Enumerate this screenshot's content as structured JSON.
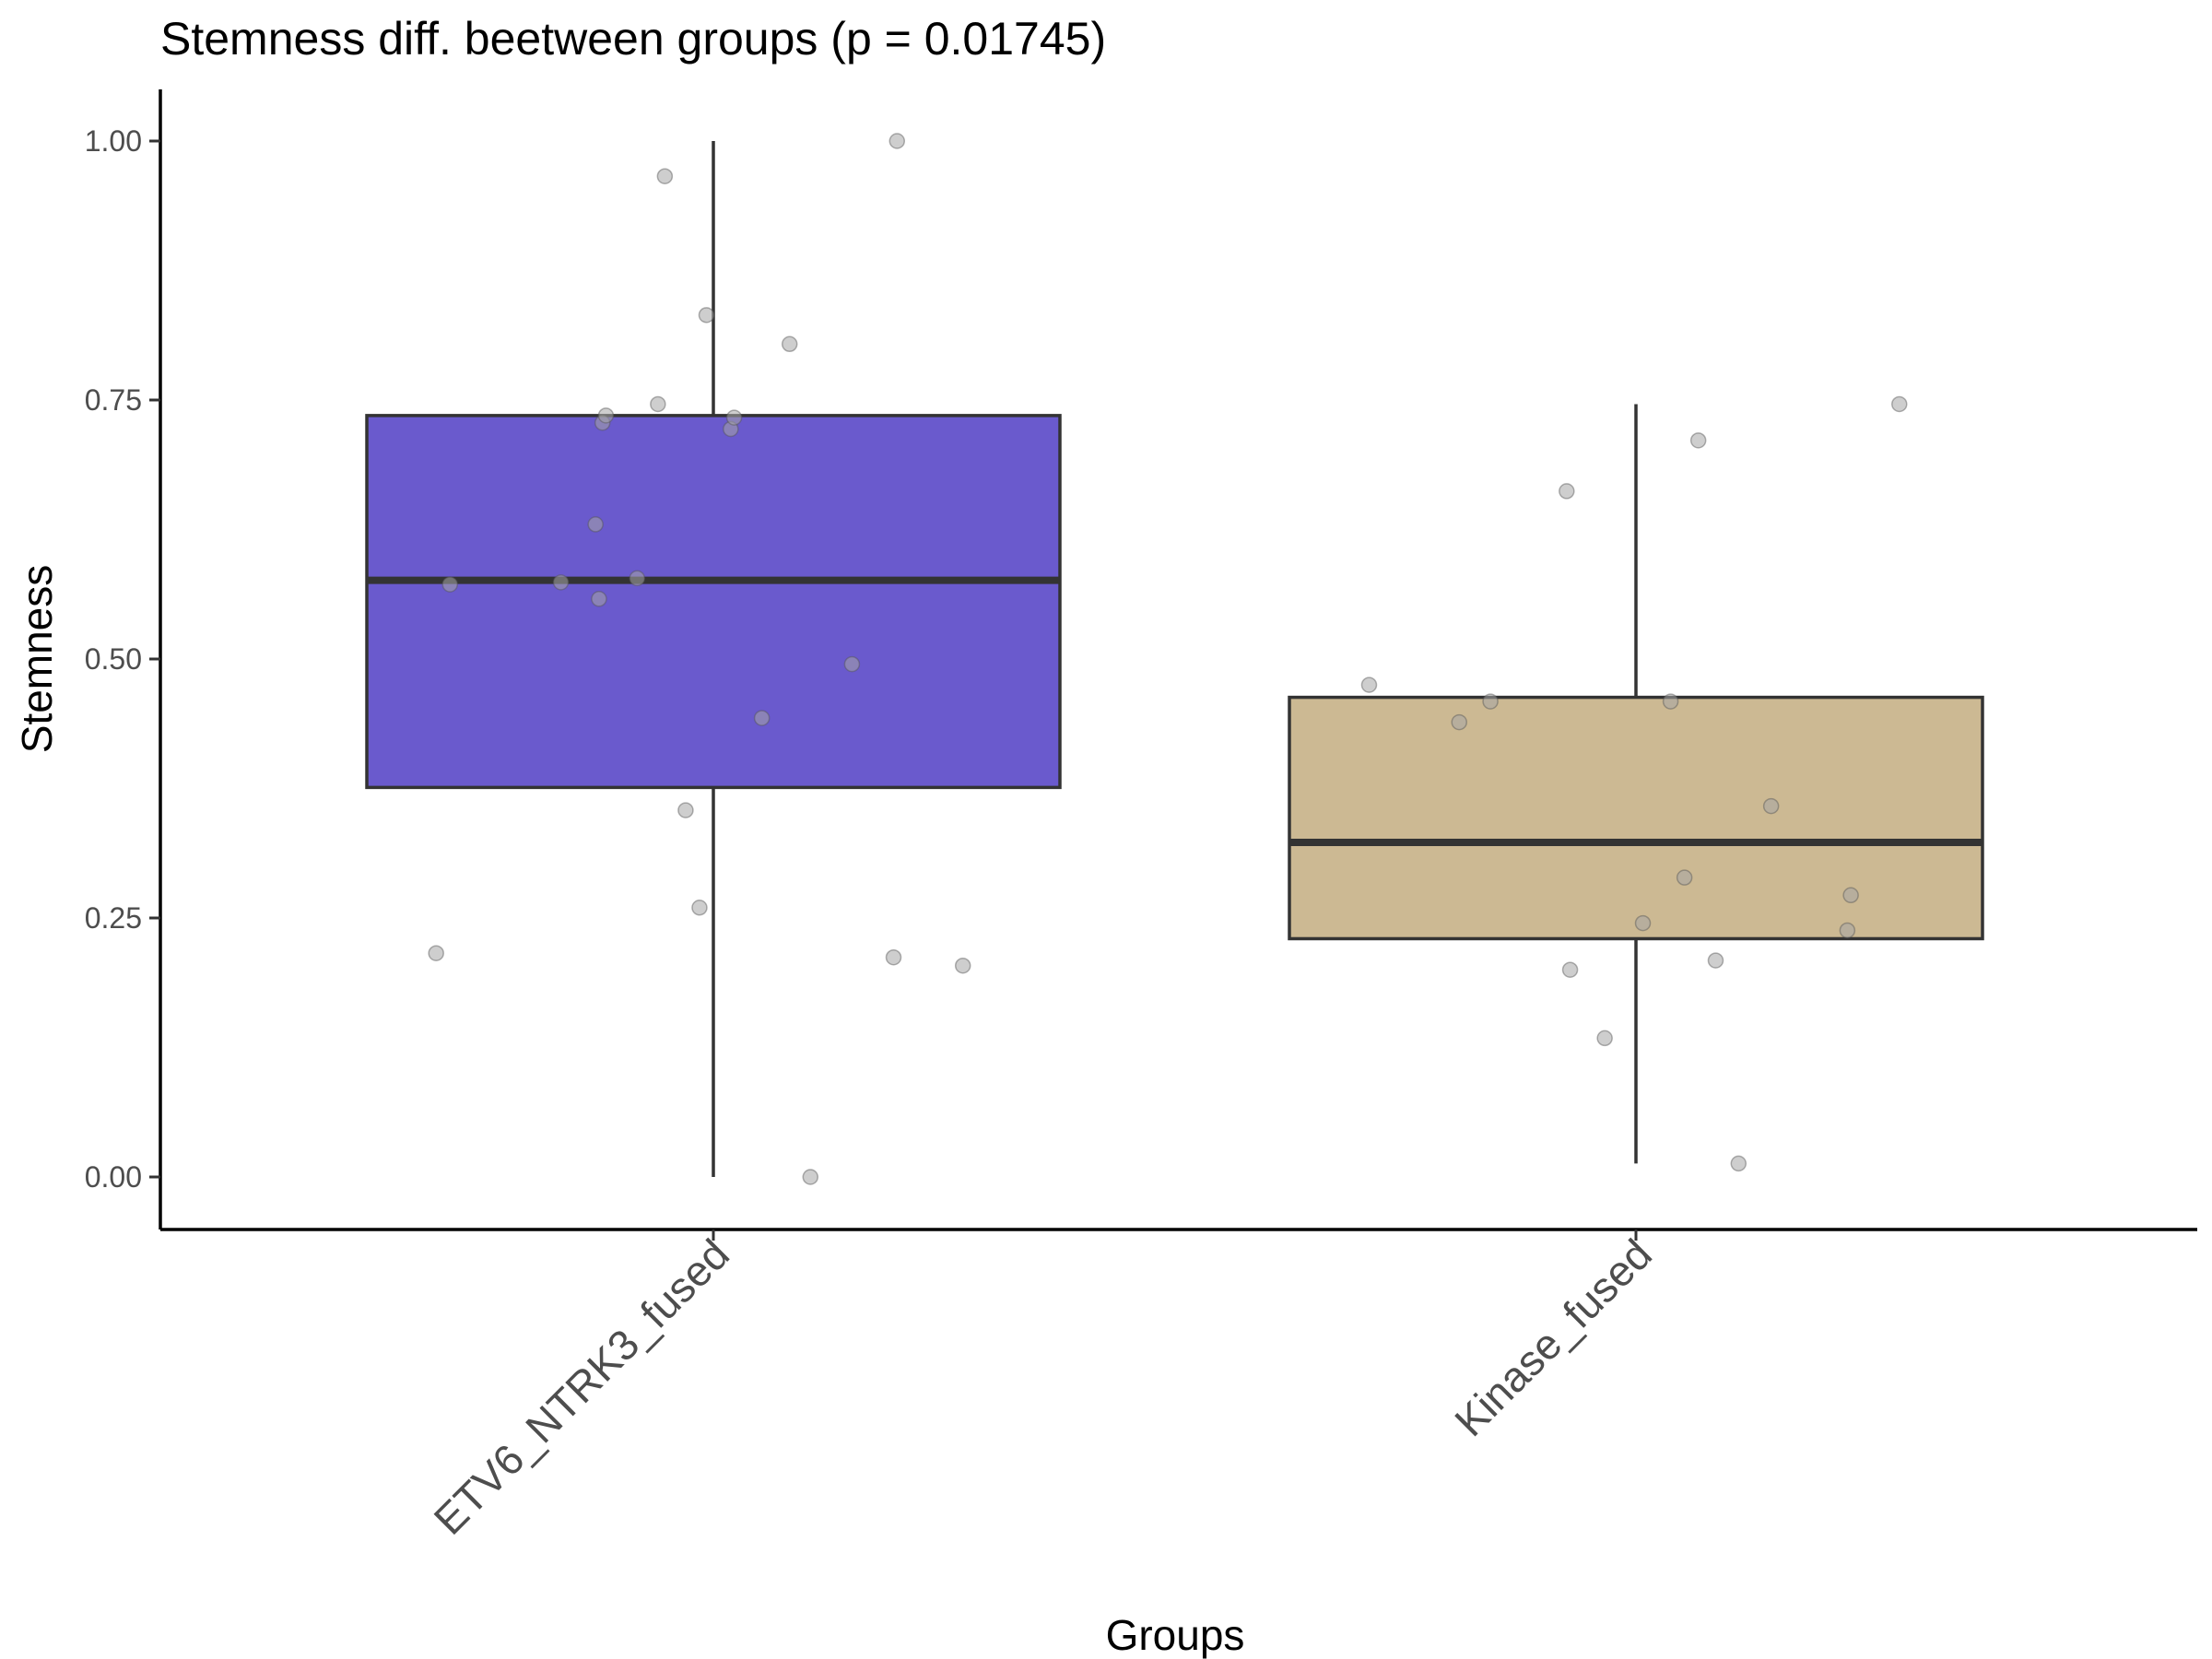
{
  "chart_data": {
    "type": "box",
    "title": "Stemness diff. beetween groups (p = 0.01745)",
    "xlabel": "Groups",
    "ylabel": "Stemness",
    "ylim": [
      -0.05,
      1.05
    ],
    "yticks": [
      0,
      0.25,
      0.5,
      0.75,
      1
    ],
    "ytick_labels": [
      "0.00",
      "0.25",
      "0.50",
      "0.75",
      "1.00"
    ],
    "grid": false,
    "legend": "none",
    "categories": [
      "ETV6_NTRK3_fused",
      "Kinase_fused"
    ],
    "point_color": "#a6a6a6",
    "box_outline_color": "#333333",
    "boxes": [
      {
        "group": "ETV6_NTRK3_fused",
        "fill": "#6a5acd",
        "whisker_low": 0.0,
        "q1": 0.376,
        "median": 0.576,
        "q3": 0.735,
        "whisker_high": 1.0,
        "points": [
          {
            "jitter": -0.38,
            "y": 0.572
          },
          {
            "jitter": -0.4,
            "y": 0.216
          },
          {
            "jitter": -0.22,
            "y": 0.574
          },
          {
            "jitter": -0.17,
            "y": 0.63
          },
          {
            "jitter": -0.165,
            "y": 0.558
          },
          {
            "jitter": -0.16,
            "y": 0.728
          },
          {
            "jitter": -0.155,
            "y": 0.735
          },
          {
            "jitter": -0.11,
            "y": 0.578
          },
          {
            "jitter": -0.08,
            "y": 0.746
          },
          {
            "jitter": -0.07,
            "y": 0.966
          },
          {
            "jitter": -0.04,
            "y": 0.354
          },
          {
            "jitter": -0.02,
            "y": 0.26
          },
          {
            "jitter": -0.01,
            "y": 0.832
          },
          {
            "jitter": 0.025,
            "y": 0.722
          },
          {
            "jitter": 0.03,
            "y": 0.733
          },
          {
            "jitter": 0.07,
            "y": 0.443
          },
          {
            "jitter": 0.14,
            "y": 0.0
          },
          {
            "jitter": 0.11,
            "y": 0.804
          },
          {
            "jitter": 0.2,
            "y": 0.495
          },
          {
            "jitter": 0.26,
            "y": 0.212
          },
          {
            "jitter": 0.265,
            "y": 1.0
          },
          {
            "jitter": 0.36,
            "y": 0.204
          }
        ]
      },
      {
        "group": "Kinase_fused",
        "fill": "#ccb993",
        "whisker_low": 0.013,
        "q1": 0.23,
        "median": 0.323,
        "q3": 0.463,
        "whisker_high": 0.746,
        "points": [
          {
            "jitter": -0.385,
            "y": 0.475
          },
          {
            "jitter": -0.255,
            "y": 0.439
          },
          {
            "jitter": -0.21,
            "y": 0.459
          },
          {
            "jitter": -0.1,
            "y": 0.662
          },
          {
            "jitter": -0.095,
            "y": 0.2
          },
          {
            "jitter": -0.045,
            "y": 0.134
          },
          {
            "jitter": 0.01,
            "y": 0.245
          },
          {
            "jitter": 0.05,
            "y": 0.459
          },
          {
            "jitter": 0.07,
            "y": 0.289
          },
          {
            "jitter": 0.09,
            "y": 0.711
          },
          {
            "jitter": 0.115,
            "y": 0.209
          },
          {
            "jitter": 0.148,
            "y": 0.013
          },
          {
            "jitter": 0.195,
            "y": 0.358
          },
          {
            "jitter": 0.305,
            "y": 0.238
          },
          {
            "jitter": 0.31,
            "y": 0.272
          },
          {
            "jitter": 0.38,
            "y": 0.746
          }
        ]
      }
    ]
  }
}
